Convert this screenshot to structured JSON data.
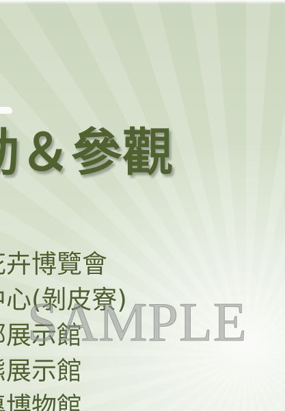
{
  "slide": {
    "title": "動＆參觀",
    "venues": [
      "花卉博覽會",
      "中心(剝皮寮)",
      "部展示館",
      "態展示館",
      "專博物館"
    ]
  },
  "watermark": "SAMPLE",
  "colors": {
    "title": "#4f6230",
    "text": "#4e6030",
    "background": "#d3dec8",
    "watermark": "#969696"
  }
}
